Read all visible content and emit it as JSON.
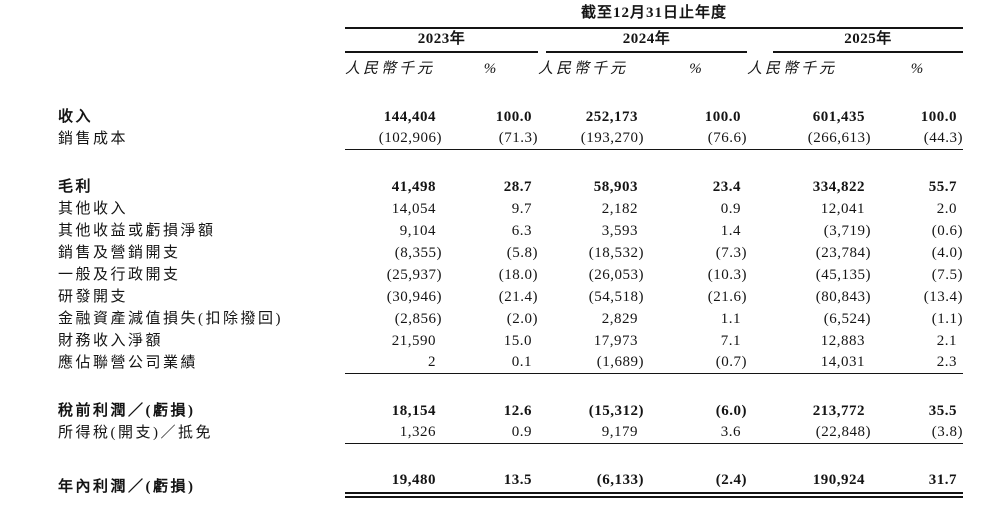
{
  "page": {
    "background_color": "#ffffff",
    "text_color": "#141414",
    "rule_color": "#141414"
  },
  "table": {
    "period_title": "截至12月31日止年度",
    "year_headers": [
      "2023年",
      "2024年",
      "2025年"
    ],
    "column_subheaders": {
      "amount": "人民幣千元",
      "percent": "%"
    },
    "rows": [
      {
        "label": "收入",
        "bold": true,
        "underline": "none",
        "spacer_after": false,
        "cells": [
          "144,404",
          "100.0",
          "252,173",
          "100.0",
          "601,435",
          "100.0"
        ]
      },
      {
        "label": "銷售成本",
        "bold": false,
        "underline": "single",
        "spacer_after": true,
        "cells": [
          "(102,906)",
          "(71.3)",
          "(193,270)",
          "(76.6)",
          "(266,613)",
          "(44.3)"
        ]
      },
      {
        "label": "毛利",
        "bold": true,
        "underline": "none",
        "spacer_after": false,
        "cells": [
          "41,498",
          "28.7",
          "58,903",
          "23.4",
          "334,822",
          "55.7"
        ]
      },
      {
        "label": "其他收入",
        "bold": false,
        "underline": "none",
        "spacer_after": false,
        "cells": [
          "14,054",
          "9.7",
          "2,182",
          "0.9",
          "12,041",
          "2.0"
        ]
      },
      {
        "label": "其他收益或虧損淨額",
        "bold": false,
        "underline": "none",
        "spacer_after": false,
        "cells": [
          "9,104",
          "6.3",
          "3,593",
          "1.4",
          "(3,719)",
          "(0.6)"
        ]
      },
      {
        "label": "銷售及營銷開支",
        "bold": false,
        "underline": "none",
        "spacer_after": false,
        "cells": [
          "(8,355)",
          "(5.8)",
          "(18,532)",
          "(7.3)",
          "(23,784)",
          "(4.0)"
        ]
      },
      {
        "label": "一般及行政開支",
        "bold": false,
        "underline": "none",
        "spacer_after": false,
        "cells": [
          "(25,937)",
          "(18.0)",
          "(26,053)",
          "(10.3)",
          "(45,135)",
          "(7.5)"
        ]
      },
      {
        "label": "研發開支",
        "bold": false,
        "underline": "none",
        "spacer_after": false,
        "cells": [
          "(30,946)",
          "(21.4)",
          "(54,518)",
          "(21.6)",
          "(80,843)",
          "(13.4)"
        ]
      },
      {
        "label": "金融資產減值損失(扣除撥回)",
        "bold": false,
        "underline": "none",
        "spacer_after": false,
        "cells": [
          "(2,856)",
          "(2.0)",
          "2,829",
          "1.1",
          "(6,524)",
          "(1.1)"
        ]
      },
      {
        "label": "財務收入淨額",
        "bold": false,
        "underline": "none",
        "spacer_after": false,
        "cells": [
          "21,590",
          "15.0",
          "17,973",
          "7.1",
          "12,883",
          "2.1"
        ]
      },
      {
        "label": "應佔聯營公司業績",
        "bold": false,
        "underline": "single",
        "spacer_after": true,
        "cells": [
          "2",
          "0.1",
          "(1,689)",
          "(0.7)",
          "14,031",
          "2.3"
        ]
      },
      {
        "label": "稅前利潤／(虧損)",
        "bold": true,
        "underline": "none",
        "spacer_after": false,
        "cells": [
          "18,154",
          "12.6",
          "(15,312)",
          "(6.0)",
          "213,772",
          "35.5"
        ]
      },
      {
        "label": "所得稅(開支)／抵免",
        "bold": false,
        "underline": "single",
        "spacer_after": true,
        "cells": [
          "1,326",
          "0.9",
          "9,179",
          "3.6",
          "(22,848)",
          "(3.8)"
        ]
      },
      {
        "label": "年內利潤／(虧損)",
        "bold": true,
        "underline": "double",
        "spacer_after": false,
        "cells": [
          "19,480",
          "13.5",
          "(6,133)",
          "(2.4)",
          "190,924",
          "31.7"
        ]
      }
    ]
  }
}
